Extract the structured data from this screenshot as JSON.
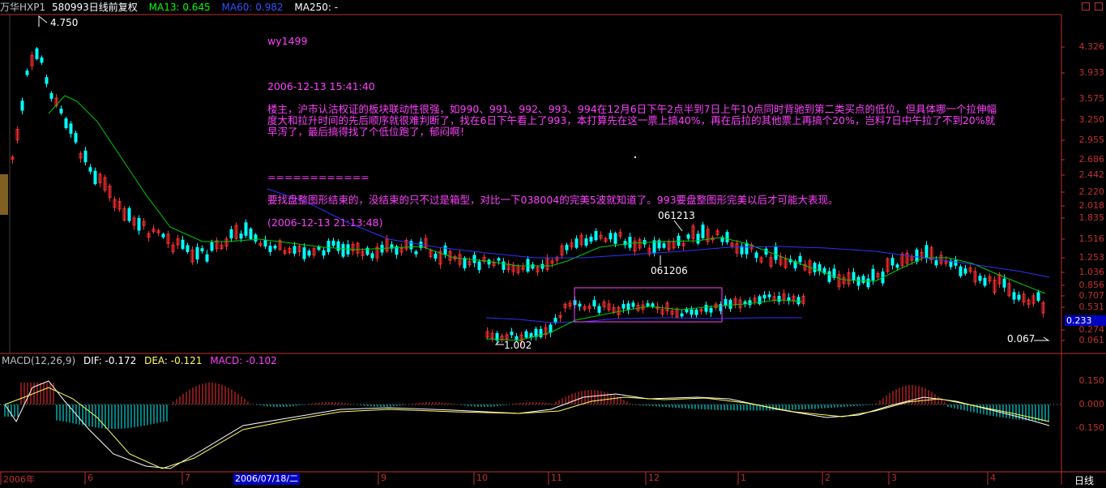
{
  "header": {
    "stock_name": "万华HXP1",
    "stock_code": "580993",
    "period": "日线",
    "adjust": "前复权",
    "ma13": "MA13: 0.645",
    "ma60": "MA60: 0.982",
    "ma250": "MA250: -"
  },
  "annotation": {
    "user": "wy1499",
    "time1": "2006-12-13 15:41:40",
    "body1": "楼主，沪市认沽权证的板块联动性很强，如990、991、992、993、994在12月6日下午2点半到7日上午10点同时背驰到第二类买点的低位，但具体哪一个拉伸幅度大和拉升时间的先后顺序就很难判断了，找在6日下午看上了993，本打算先在这一票上搞40%，再在后拉的其他票上再搞个20%，岂料7日中午拉了不到20%就早泻了，最后搞得找了个低位跑了，郁闷啊！",
    "separator": "============",
    "body2": "要找盘整图形结束的，没结束的只不过是箱型，对比一下038004的完美5波就知道了。993要盘整图形完美以后才可能大表现。",
    "time2": "(2006-12-13 21:13:48)"
  },
  "price_axis": [
    "4.326",
    "3.933",
    "3.575",
    "3.250",
    "2.955",
    "2.686",
    "2.442",
    "2.220",
    "2.018",
    "1.835",
    "1.516",
    "1.253",
    "1.036",
    "0.856",
    "0.707",
    "0.531",
    "0.274",
    "0.061"
  ],
  "current_price": "0.233",
  "markers": {
    "high": "4.750",
    "low_overlay": "1.002",
    "low_main": "0.067",
    "date_a": "061213",
    "date_b": "061206"
  },
  "macd": {
    "title": "MACD(12,26,9)",
    "dif": "DIF: -0.172",
    "dea": "DEA: -0.121",
    "macd": "MACD: -0.102",
    "axis": [
      "0.150",
      "0.000",
      "-0.150"
    ]
  },
  "time_axis": {
    "labels": [
      "2006年",
      "6",
      "7",
      "9",
      "10",
      "11",
      "12",
      "1",
      "2",
      "3",
      "4"
    ],
    "cursor_date": "2006/07/18/二",
    "period_label": "日线"
  },
  "colors": {
    "up": "#ff3030",
    "down": "#00ffff",
    "ma13": "#00cc00",
    "ma60": "#3030ff",
    "annotation": "#ff40ff",
    "axis": "#c03030"
  }
}
